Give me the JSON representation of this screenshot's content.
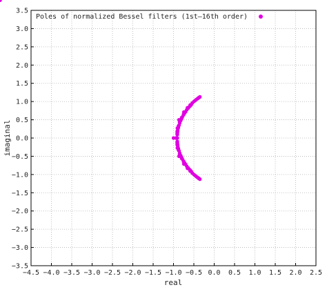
{
  "chart_data": {
    "type": "scatter",
    "title": "",
    "xlabel": "real",
    "ylabel": "imaginal",
    "xlim": [
      -4.5,
      2.5
    ],
    "ylim": [
      -3.5,
      3.5
    ],
    "xticks": [
      "−4.5",
      "−4.0",
      "−3.5",
      "−3.0",
      "−2.5",
      "−2.0",
      "−1.5",
      "−1.0",
      "−0.5",
      "0.0",
      "0.5",
      "1.0",
      "1.5",
      "2.0",
      "2.5"
    ],
    "yticks": [
      "3.5",
      "3.0",
      "2.5",
      "2.0",
      "1.5",
      "1.0",
      "0.5",
      "0.0",
      "−0.5",
      "−1.0",
      "−1.5",
      "−2.0",
      "−2.5",
      "−3.0",
      "−3.5"
    ],
    "grid": true,
    "legend_position": "top-right",
    "point_color": "#e000e0",
    "line_color": "#b58cff",
    "series": [
      {
        "name": "Poles of normalized Bessel filters (1st–16th order)",
        "orders": [
          1,
          16
        ]
      }
    ]
  }
}
